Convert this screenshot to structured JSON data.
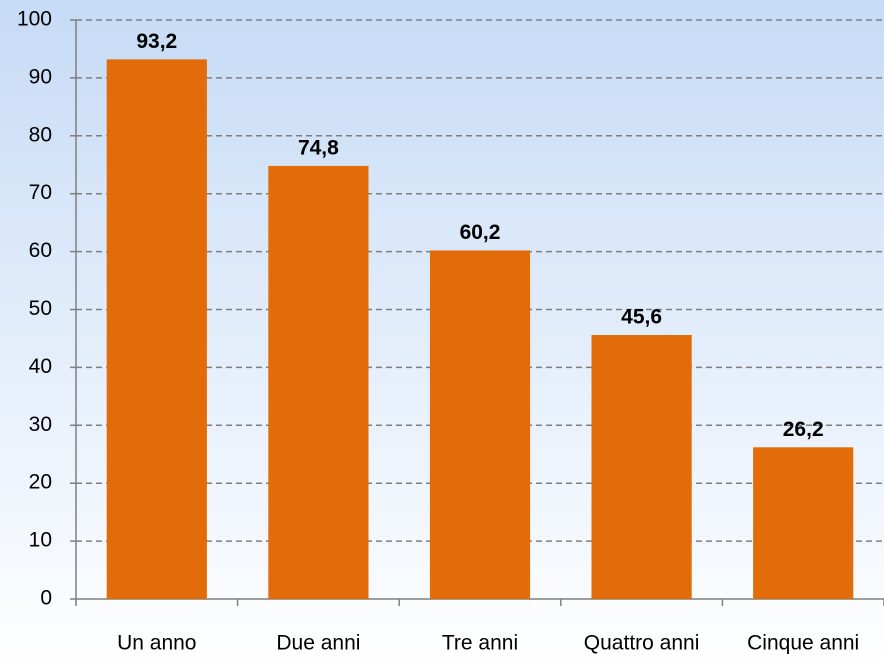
{
  "chart_data": {
    "type": "bar",
    "categories": [
      "Un anno",
      "Due anni",
      "Tre anni",
      "Quattro anni",
      "Cinque anni"
    ],
    "values": [
      93.2,
      74.8,
      60.2,
      45.6,
      26.2
    ],
    "value_labels": [
      "93,2",
      "74,8",
      "60,2",
      "45,6",
      "26,2"
    ],
    "color": "#e36c0a",
    "ylim": [
      0,
      100
    ],
    "yticks": [
      0,
      10,
      20,
      30,
      40,
      50,
      60,
      70,
      80,
      90,
      100
    ],
    "grid": true
  }
}
